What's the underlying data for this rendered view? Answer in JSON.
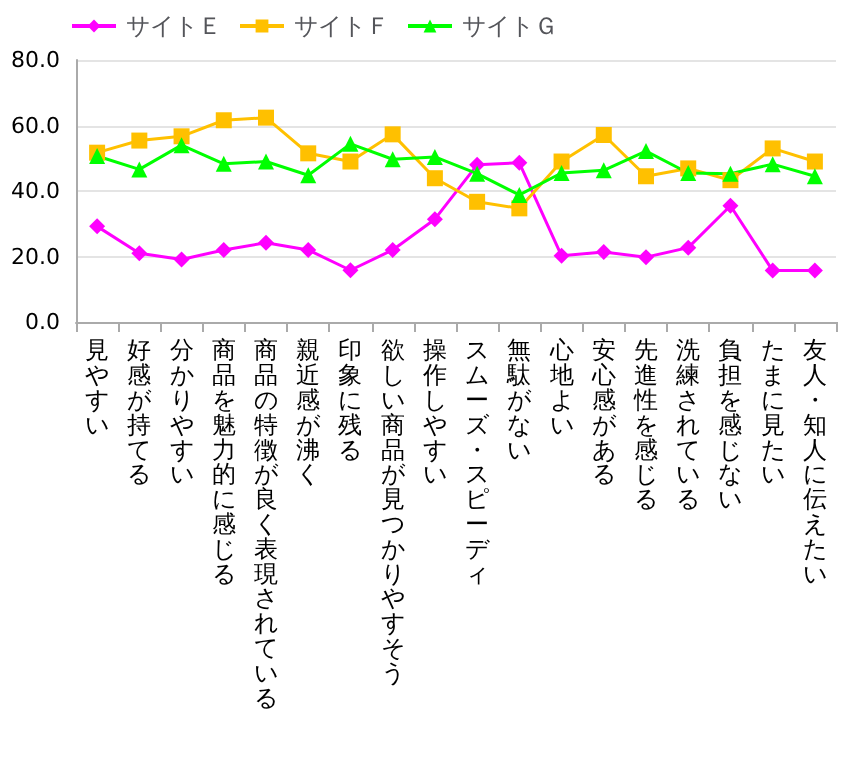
{
  "chart_data": {
    "type": "line",
    "categories": [
      "見やすい",
      "好感が持てる",
      "分かりやすい",
      "商品を魅力的に感じる",
      "商品の特徴が良く表現されている",
      "親近感が沸く",
      "印象に残る",
      "欲しい商品が見つかりやすそう",
      "操作しやすい",
      "スムーズ・スピーディ",
      "無駄がない",
      "心地よい",
      "安心感がある",
      "先進性を感じる",
      "洗練されている",
      "負担を感じない",
      "たまに見たい",
      "友人・知人に伝えたい"
    ],
    "series": [
      {
        "name": "サイトＥ",
        "color": "#ff00ff",
        "marker": "diamond",
        "values": [
          29.2,
          21,
          19.1,
          22,
          24.2,
          22,
          15.8,
          22,
          31.4,
          48,
          48.6,
          20.2,
          21.4,
          19.8,
          22.7,
          35.5,
          15.7,
          15.7
        ]
      },
      {
        "name": "サイトＦ",
        "color": "#ffc000",
        "marker": "square",
        "values": [
          51.7,
          55.4,
          56.7,
          61.6,
          62.4,
          51.5,
          49,
          57.3,
          43.9,
          36.7,
          34.7,
          49,
          57.1,
          44.5,
          46.9,
          43.3,
          53,
          49
        ]
      },
      {
        "name": "サイトＧ",
        "color": "#00ff00",
        "marker": "triangle",
        "values": [
          50.7,
          46.6,
          54,
          48.3,
          49,
          44.8,
          54.4,
          49.7,
          50.4,
          45.3,
          38.8,
          45.5,
          46.3,
          52.2,
          45.5,
          45.3,
          48.2,
          44.5
        ]
      }
    ],
    "ylim": [
      0,
      80
    ],
    "yticks": [
      {
        "value": 0,
        "label": "0.0"
      },
      {
        "value": 20,
        "label": "20.0"
      },
      {
        "value": 40,
        "label": "40.0"
      },
      {
        "value": 60,
        "label": "60.0"
      },
      {
        "value": 80,
        "label": "80.0"
      }
    ],
    "grid": "y",
    "legend": "top"
  }
}
